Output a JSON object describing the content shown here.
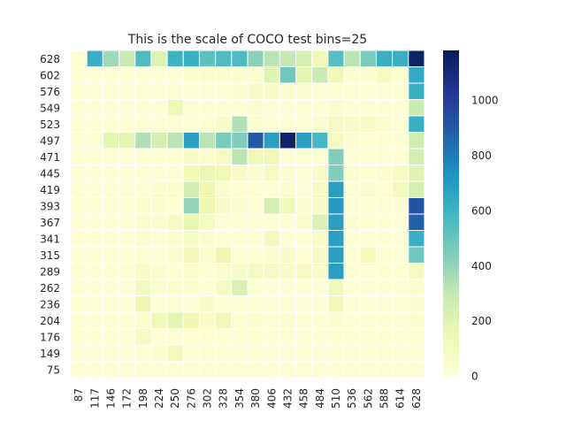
{
  "chart_data": {
    "type": "heatmap",
    "title": "This is the scale of COCO test bins=25",
    "xlabel": "",
    "ylabel": "",
    "x_categories": [
      "87",
      "117",
      "146",
      "172",
      "198",
      "224",
      "250",
      "276",
      "302",
      "328",
      "354",
      "380",
      "406",
      "432",
      "458",
      "484",
      "510",
      "536",
      "562",
      "588",
      "614",
      "628"
    ],
    "y_categories": [
      "628",
      "602",
      "576",
      "549",
      "523",
      "497",
      "471",
      "445",
      "419",
      "393",
      "367",
      "341",
      "315",
      "289",
      "262",
      "236",
      "204",
      "176",
      "149",
      "75"
    ],
    "values": [
      [
        20,
        620,
        380,
        280,
        560,
        200,
        600,
        620,
        520,
        560,
        560,
        420,
        320,
        300,
        240,
        120,
        540,
        320,
        460,
        620,
        620,
        1150
      ],
      [
        20,
        20,
        20,
        20,
        20,
        20,
        20,
        40,
        40,
        40,
        40,
        40,
        200,
        480,
        180,
        280,
        120,
        40,
        40,
        80,
        40,
        640
      ],
      [
        20,
        20,
        20,
        20,
        20,
        20,
        20,
        20,
        20,
        20,
        40,
        60,
        60,
        40,
        40,
        20,
        20,
        20,
        20,
        20,
        20,
        620
      ],
      [
        20,
        20,
        20,
        20,
        20,
        20,
        120,
        20,
        20,
        20,
        20,
        40,
        20,
        20,
        20,
        20,
        40,
        20,
        20,
        20,
        20,
        280
      ],
      [
        20,
        20,
        20,
        20,
        20,
        20,
        20,
        20,
        20,
        60,
        340,
        40,
        20,
        20,
        20,
        40,
        80,
        60,
        80,
        40,
        20,
        620
      ],
      [
        20,
        20,
        180,
        180,
        340,
        240,
        320,
        680,
        320,
        460,
        440,
        900,
        680,
        1140,
        680,
        580,
        80,
        40,
        20,
        20,
        20,
        260
      ],
      [
        20,
        20,
        20,
        20,
        20,
        20,
        20,
        60,
        40,
        80,
        320,
        120,
        120,
        20,
        20,
        20,
        440,
        20,
        20,
        20,
        20,
        240
      ],
      [
        20,
        20,
        20,
        20,
        20,
        20,
        20,
        120,
        140,
        120,
        60,
        40,
        80,
        40,
        20,
        60,
        440,
        40,
        20,
        40,
        80,
        200
      ],
      [
        20,
        20,
        20,
        20,
        20,
        40,
        40,
        260,
        140,
        40,
        20,
        20,
        20,
        40,
        20,
        80,
        680,
        20,
        40,
        20,
        100,
        240
      ],
      [
        20,
        20,
        20,
        20,
        40,
        40,
        20,
        400,
        140,
        60,
        40,
        20,
        240,
        120,
        40,
        60,
        700,
        20,
        20,
        20,
        20,
        920
      ],
      [
        20,
        20,
        20,
        20,
        40,
        40,
        80,
        160,
        80,
        20,
        20,
        20,
        20,
        20,
        40,
        220,
        680,
        40,
        20,
        20,
        20,
        880
      ],
      [
        20,
        20,
        20,
        20,
        40,
        20,
        40,
        60,
        40,
        20,
        20,
        20,
        100,
        20,
        20,
        60,
        680,
        20,
        20,
        20,
        20,
        620
      ],
      [
        20,
        20,
        20,
        20,
        20,
        20,
        40,
        120,
        40,
        140,
        20,
        20,
        40,
        60,
        20,
        80,
        680,
        20,
        100,
        20,
        20,
        480
      ],
      [
        20,
        20,
        20,
        20,
        60,
        40,
        20,
        40,
        20,
        40,
        60,
        80,
        80,
        60,
        80,
        60,
        680,
        20,
        20,
        20,
        20,
        80
      ],
      [
        20,
        20,
        20,
        20,
        100,
        40,
        40,
        40,
        20,
        80,
        220,
        20,
        20,
        20,
        20,
        20,
        120,
        20,
        20,
        20,
        20,
        40
      ],
      [
        20,
        20,
        20,
        20,
        140,
        20,
        20,
        20,
        60,
        20,
        20,
        20,
        20,
        20,
        20,
        20,
        120,
        20,
        20,
        20,
        20,
        40
      ],
      [
        20,
        20,
        20,
        20,
        40,
        120,
        180,
        140,
        60,
        120,
        20,
        40,
        20,
        40,
        20,
        20,
        40,
        20,
        20,
        20,
        20,
        40
      ],
      [
        20,
        20,
        20,
        20,
        80,
        20,
        20,
        20,
        20,
        20,
        20,
        20,
        20,
        20,
        20,
        20,
        20,
        20,
        20,
        20,
        20,
        20
      ],
      [
        20,
        20,
        20,
        20,
        20,
        40,
        100,
        20,
        20,
        20,
        20,
        20,
        20,
        20,
        20,
        20,
        20,
        20,
        20,
        20,
        20,
        20
      ],
      [
        20,
        20,
        20,
        20,
        20,
        20,
        20,
        20,
        20,
        20,
        20,
        20,
        20,
        20,
        20,
        20,
        20,
        20,
        20,
        20,
        20,
        20
      ]
    ],
    "colorbar": {
      "min": 0,
      "max": 1180,
      "ticks": [
        0,
        200,
        400,
        600,
        800,
        1000
      ],
      "colormap": "YlGnBu",
      "colors": [
        "#ffffd9",
        "#edf8b1",
        "#c7e9b4",
        "#7fcdbb",
        "#41b6c4",
        "#1d91c0",
        "#225ea8",
        "#253494",
        "#081d58"
      ]
    },
    "cell_border_color": "#ffffff",
    "grid": false,
    "legend": "colorbar-right"
  }
}
